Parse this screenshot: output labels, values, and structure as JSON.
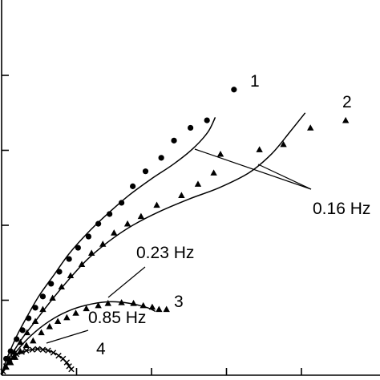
{
  "chart_data": {
    "type": "scatter",
    "title": "",
    "xlabel": "",
    "ylabel": "",
    "axes": {
      "left_spine": true,
      "bottom_spine": true,
      "grid": false,
      "tick_labels": false
    },
    "xlim": [
      0,
      5
    ],
    "ylim": [
      0,
      5
    ],
    "x_ticks": [
      1,
      2,
      3,
      4
    ],
    "y_ticks": [
      1,
      2,
      3,
      4
    ],
    "series": [
      {
        "name": "1",
        "marker": "circle",
        "points": [
          [
            0.06,
            0.22
          ],
          [
            0.12,
            0.32
          ],
          [
            0.2,
            0.48
          ],
          [
            0.28,
            0.6
          ],
          [
            0.36,
            0.76
          ],
          [
            0.45,
            0.9
          ],
          [
            0.55,
            1.05
          ],
          [
            0.66,
            1.22
          ],
          [
            0.77,
            1.38
          ],
          [
            0.9,
            1.55
          ],
          [
            1.02,
            1.7
          ],
          [
            1.16,
            1.85
          ],
          [
            1.29,
            2.02
          ],
          [
            1.44,
            2.15
          ],
          [
            1.6,
            2.3
          ],
          [
            1.75,
            2.52
          ],
          [
            1.92,
            2.72
          ],
          [
            2.13,
            2.9
          ],
          [
            2.3,
            3.13
          ],
          [
            2.52,
            3.3
          ],
          [
            2.74,
            3.4
          ],
          [
            3.1,
            3.81
          ]
        ],
        "fit": [
          [
            0,
            0
          ],
          [
            0.05,
            0.17
          ],
          [
            0.12,
            0.34
          ],
          [
            0.22,
            0.56
          ],
          [
            0.35,
            0.8
          ],
          [
            0.5,
            1.06
          ],
          [
            0.7,
            1.34
          ],
          [
            0.9,
            1.62
          ],
          [
            1.15,
            1.9
          ],
          [
            1.4,
            2.14
          ],
          [
            1.7,
            2.4
          ],
          [
            2.0,
            2.62
          ],
          [
            2.3,
            2.82
          ],
          [
            2.55,
            3.02
          ],
          [
            2.75,
            3.24
          ],
          [
            2.85,
            3.44
          ]
        ]
      },
      {
        "name": "2",
        "marker": "triangle",
        "points": [
          [
            0.1,
            0.22
          ],
          [
            0.17,
            0.31
          ],
          [
            0.25,
            0.44
          ],
          [
            0.34,
            0.57
          ],
          [
            0.45,
            0.72
          ],
          [
            0.55,
            0.88
          ],
          [
            0.68,
            1.03
          ],
          [
            0.8,
            1.18
          ],
          [
            0.92,
            1.33
          ],
          [
            1.07,
            1.48
          ],
          [
            1.2,
            1.63
          ],
          [
            1.35,
            1.75
          ],
          [
            1.5,
            1.9
          ],
          [
            1.68,
            2.02
          ],
          [
            1.86,
            2.12
          ],
          [
            2.07,
            2.27
          ],
          [
            2.4,
            2.4
          ],
          [
            2.62,
            2.55
          ],
          [
            2.83,
            2.7
          ],
          [
            2.92,
            2.95
          ],
          [
            3.44,
            3.01
          ],
          [
            3.76,
            3.08
          ],
          [
            4.12,
            3.3
          ],
          [
            4.59,
            3.4
          ]
        ],
        "fit": [
          [
            0,
            0
          ],
          [
            0.06,
            0.14
          ],
          [
            0.15,
            0.3
          ],
          [
            0.28,
            0.5
          ],
          [
            0.45,
            0.72
          ],
          [
            0.65,
            0.98
          ],
          [
            0.9,
            1.28
          ],
          [
            1.15,
            1.55
          ],
          [
            1.45,
            1.8
          ],
          [
            1.75,
            2.0
          ],
          [
            2.1,
            2.18
          ],
          [
            2.5,
            2.35
          ],
          [
            2.9,
            2.5
          ],
          [
            3.3,
            2.7
          ],
          [
            3.6,
            2.95
          ],
          [
            3.85,
            3.25
          ],
          [
            4.05,
            3.5
          ]
        ]
      },
      {
        "name": "3",
        "marker": "triangle",
        "points": [
          [
            0.06,
            0.11
          ],
          [
            0.12,
            0.17
          ],
          [
            0.18,
            0.24
          ],
          [
            0.25,
            0.32
          ],
          [
            0.33,
            0.4
          ],
          [
            0.42,
            0.46
          ],
          [
            0.53,
            0.57
          ],
          [
            0.64,
            0.65
          ],
          [
            0.75,
            0.72
          ],
          [
            0.87,
            0.77
          ],
          [
            0.99,
            0.83
          ],
          [
            1.13,
            0.89
          ],
          [
            1.29,
            0.93
          ],
          [
            1.42,
            0.96
          ],
          [
            1.6,
            0.97
          ],
          [
            1.76,
            0.96
          ],
          [
            1.89,
            0.93
          ],
          [
            2.01,
            0.91
          ],
          [
            2.1,
            0.88
          ],
          [
            2.2,
            0.88
          ]
        ],
        "fit": [
          [
            0,
            0
          ],
          [
            0.1,
            0.18
          ],
          [
            0.25,
            0.38
          ],
          [
            0.45,
            0.58
          ],
          [
            0.7,
            0.76
          ],
          [
            0.95,
            0.88
          ],
          [
            1.2,
            0.95
          ],
          [
            1.45,
            0.98
          ],
          [
            1.7,
            0.96
          ],
          [
            1.95,
            0.9
          ],
          [
            2.05,
            0.85
          ]
        ]
      },
      {
        "name": "4",
        "marker": "cross",
        "points": [
          [
            0.02,
            0.05
          ],
          [
            0.06,
            0.12
          ],
          [
            0.1,
            0.18
          ],
          [
            0.15,
            0.24
          ],
          [
            0.2,
            0.28
          ],
          [
            0.27,
            0.31
          ],
          [
            0.33,
            0.33
          ],
          [
            0.41,
            0.34
          ],
          [
            0.48,
            0.35
          ],
          [
            0.55,
            0.34
          ],
          [
            0.62,
            0.33
          ],
          [
            0.69,
            0.3
          ],
          [
            0.76,
            0.26
          ],
          [
            0.82,
            0.22
          ],
          [
            0.87,
            0.17
          ],
          [
            0.9,
            0.12
          ],
          [
            0.93,
            0.08
          ]
        ],
        "fit": [
          [
            0,
            0
          ],
          [
            0.08,
            0.15
          ],
          [
            0.2,
            0.27
          ],
          [
            0.35,
            0.33
          ],
          [
            0.5,
            0.35
          ],
          [
            0.65,
            0.32
          ],
          [
            0.78,
            0.25
          ],
          [
            0.88,
            0.15
          ],
          [
            0.93,
            0.07
          ]
        ]
      }
    ],
    "annotations": [
      {
        "id": "label-1",
        "text": "1"
      },
      {
        "id": "label-2",
        "text": "2"
      },
      {
        "id": "label-3",
        "text": "3"
      },
      {
        "id": "label-4",
        "text": "4"
      },
      {
        "id": "freq-016",
        "text": "0.16 Hz"
      },
      {
        "id": "freq-023",
        "text": "0.23 Hz"
      },
      {
        "id": "freq-085",
        "text": "0.85 Hz"
      }
    ]
  }
}
